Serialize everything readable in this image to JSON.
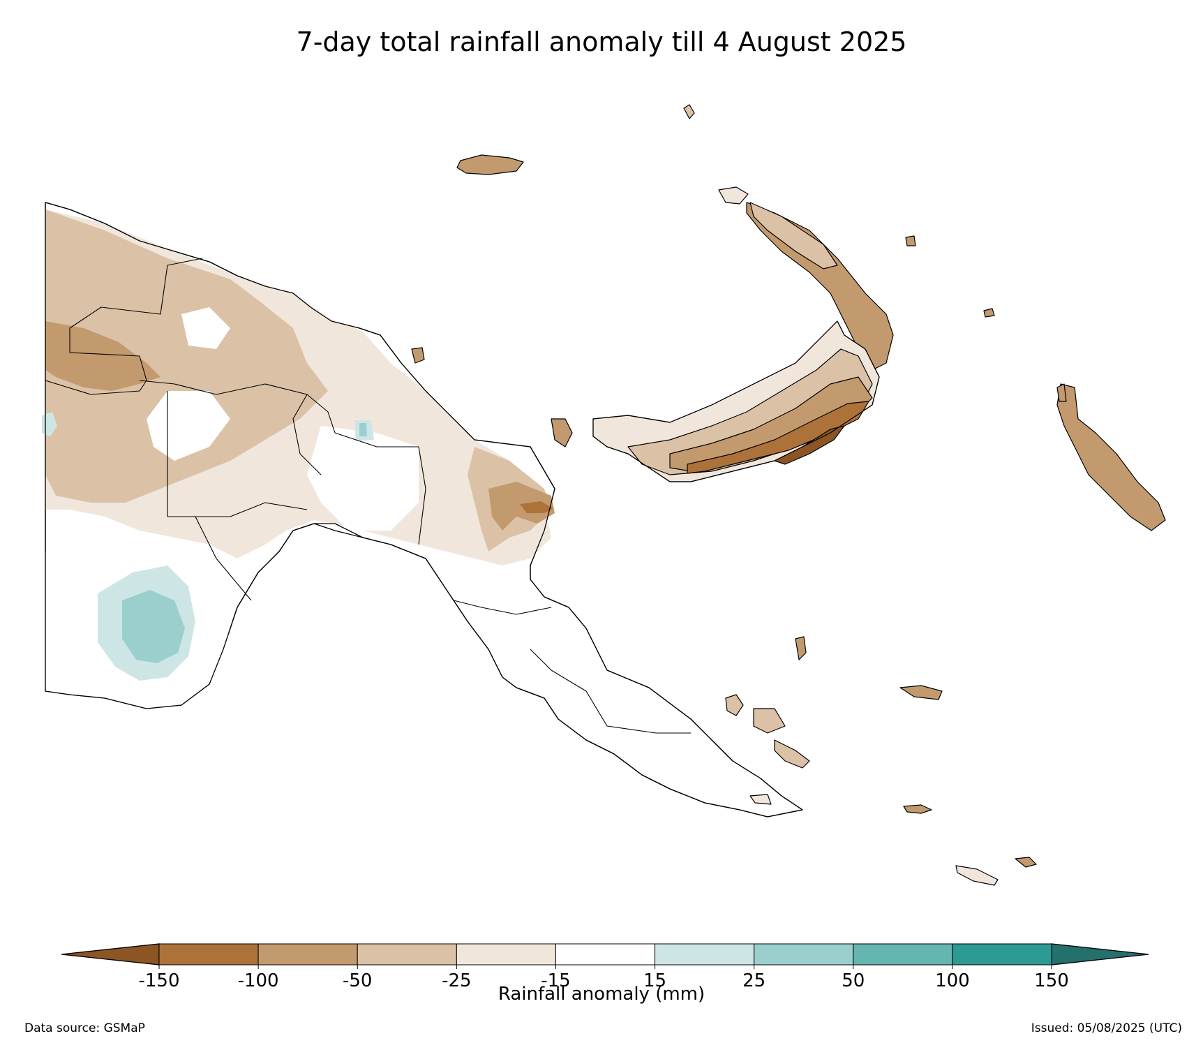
{
  "title": "7-day total rainfall anomaly till 4 August 2025",
  "colorbar": {
    "label": "Rainfall anomaly (mm)",
    "ticks": [
      "-150",
      "-100",
      "-50",
      "-25",
      "-15",
      "15",
      "25",
      "50",
      "100",
      "150"
    ],
    "bins": [
      {
        "range": "< -150",
        "color": "#8c5524"
      },
      {
        "range": "-150 to -100",
        "color": "#ad723a"
      },
      {
        "range": "-100 to -50",
        "color": "#c39a6e"
      },
      {
        "range": "-50 to -25",
        "color": "#dbc2a6"
      },
      {
        "range": "-25 to -15",
        "color": "#f1e6dc"
      },
      {
        "range": "-15 to 15",
        "color": "#ffffff"
      },
      {
        "range": "15 to 25",
        "color": "#cde6e5"
      },
      {
        "range": "25 to 50",
        "color": "#9bcfcd"
      },
      {
        "range": "50 to 100",
        "color": "#65b5b1"
      },
      {
        "range": "100 to 150",
        "color": "#2e9a94"
      },
      {
        "range": "> 150",
        "color": "#23706c"
      }
    ]
  },
  "footer": {
    "source": "Data source: GSMaP",
    "issued": "Issued: 05/08/2025 (UTC)"
  }
}
